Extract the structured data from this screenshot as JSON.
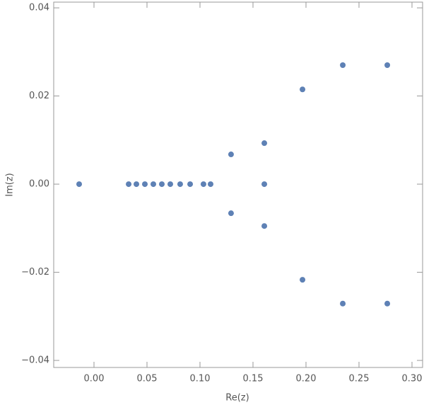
{
  "chart_data": {
    "type": "scatter",
    "xlabel": "Re(z)",
    "ylabel": "Im(z)",
    "color": "#5e81b5",
    "x": [
      -0.014,
      0.0327,
      0.04,
      0.048,
      0.056,
      0.064,
      0.072,
      0.0813,
      0.0907,
      0.1033,
      0.11,
      0.1293,
      0.1293,
      0.1607,
      0.1607,
      0.1607,
      0.1967,
      0.1967,
      0.2347,
      0.2347,
      0.2767,
      0.2767
    ],
    "values": [
      0,
      0,
      0,
      0,
      0,
      0,
      0,
      0,
      0,
      0,
      0,
      0.00675,
      -0.0066,
      0.0093,
      0,
      -0.0095,
      0.0215,
      -0.0217,
      0.027,
      -0.0271,
      0.027,
      -0.0271
    ],
    "xlim": [
      -0.038,
      0.31
    ],
    "ylim": [
      -0.0416,
      0.0413
    ],
    "xticks": [
      {
        "value": 0,
        "label": "0.00"
      },
      {
        "value": 0.05,
        "label": "0.05"
      },
      {
        "value": 0.1,
        "label": "0.10"
      },
      {
        "value": 0.15,
        "label": "0.15"
      },
      {
        "value": 0.2,
        "label": "0.20"
      },
      {
        "value": 0.25,
        "label": "0.25"
      },
      {
        "value": 0.3,
        "label": "0.30"
      }
    ],
    "yticks": [
      {
        "value": -0.04,
        "label": "−0.04"
      },
      {
        "value": -0.02,
        "label": "−0.02"
      },
      {
        "value": 0,
        "label": "0.00"
      },
      0.02,
      0.04
    ]
  }
}
